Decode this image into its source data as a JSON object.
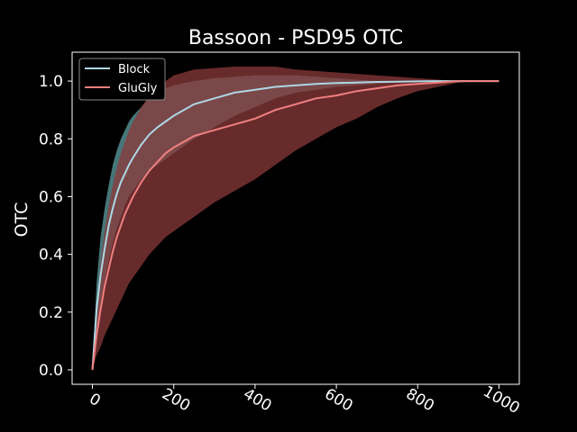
{
  "chart_data": {
    "type": "line",
    "title": "Bassoon - PSD95 OTC",
    "xlabel": "",
    "ylabel": "OTC",
    "xlim": [
      -50,
      1050
    ],
    "ylim": [
      -0.05,
      1.1
    ],
    "xticks": [
      0,
      200,
      400,
      600,
      800,
      1000
    ],
    "yticks": [
      0.0,
      0.2,
      0.4,
      0.6,
      0.8,
      1.0
    ],
    "xtick_labels": [
      "0",
      "200",
      "400",
      "600",
      "800",
      "1000"
    ],
    "ytick_labels": [
      "0.0",
      "0.2",
      "0.4",
      "0.6",
      "0.8",
      "1.0"
    ],
    "grid": false,
    "legend": "upper-left",
    "background": "#000000",
    "x": [
      0,
      10,
      20,
      30,
      40,
      50,
      60,
      70,
      80,
      90,
      100,
      120,
      140,
      160,
      180,
      200,
      250,
      300,
      350,
      400,
      450,
      500,
      550,
      600,
      650,
      700,
      750,
      800,
      850,
      900,
      950,
      1000
    ],
    "series": [
      {
        "name": "Block",
        "color": "#add8e6",
        "band_color": "#5f9ea0",
        "mean": [
          0.0,
          0.21,
          0.33,
          0.42,
          0.5,
          0.56,
          0.61,
          0.65,
          0.68,
          0.71,
          0.735,
          0.78,
          0.815,
          0.84,
          0.86,
          0.88,
          0.92,
          0.94,
          0.96,
          0.97,
          0.98,
          0.985,
          0.99,
          0.993,
          0.995,
          0.997,
          0.998,
          0.999,
          1.0,
          1.0,
          1.0,
          1.0
        ],
        "upper": [
          0.0,
          0.3,
          0.46,
          0.56,
          0.64,
          0.71,
          0.76,
          0.8,
          0.83,
          0.86,
          0.88,
          0.91,
          0.94,
          0.96,
          0.975,
          0.985,
          1.0,
          1.01,
          1.015,
          1.02,
          1.02,
          1.02,
          1.015,
          1.01,
          1.005,
          1.0,
          1.0,
          1.0,
          1.0,
          1.0,
          1.0,
          1.0
        ],
        "lower": [
          0.0,
          0.14,
          0.23,
          0.31,
          0.38,
          0.44,
          0.49,
          0.53,
          0.57,
          0.6,
          0.62,
          0.66,
          0.69,
          0.71,
          0.73,
          0.75,
          0.8,
          0.84,
          0.88,
          0.91,
          0.94,
          0.96,
          0.97,
          0.98,
          0.985,
          0.99,
          0.995,
          0.997,
          0.999,
          1.0,
          1.0,
          1.0
        ]
      },
      {
        "name": "GluGly",
        "color": "#f08080",
        "band_color": "#8b3a3a",
        "mean": [
          0.0,
          0.12,
          0.21,
          0.29,
          0.35,
          0.41,
          0.46,
          0.5,
          0.54,
          0.57,
          0.6,
          0.65,
          0.69,
          0.72,
          0.75,
          0.77,
          0.81,
          0.83,
          0.85,
          0.87,
          0.9,
          0.92,
          0.94,
          0.95,
          0.965,
          0.975,
          0.985,
          0.99,
          0.995,
          1.0,
          1.0,
          1.0
        ],
        "upper": [
          0.0,
          0.23,
          0.37,
          0.48,
          0.57,
          0.64,
          0.7,
          0.75,
          0.79,
          0.83,
          0.86,
          0.91,
          0.95,
          0.98,
          1.0,
          1.02,
          1.04,
          1.045,
          1.05,
          1.05,
          1.05,
          1.04,
          1.035,
          1.03,
          1.025,
          1.02,
          1.015,
          1.01,
          1.005,
          1.0,
          1.0,
          1.0
        ],
        "lower": [
          0.0,
          0.05,
          0.08,
          0.12,
          0.15,
          0.18,
          0.21,
          0.24,
          0.27,
          0.3,
          0.32,
          0.36,
          0.4,
          0.43,
          0.46,
          0.48,
          0.53,
          0.58,
          0.62,
          0.66,
          0.71,
          0.76,
          0.8,
          0.84,
          0.87,
          0.91,
          0.94,
          0.965,
          0.98,
          0.995,
          1.0,
          1.0
        ]
      }
    ]
  }
}
